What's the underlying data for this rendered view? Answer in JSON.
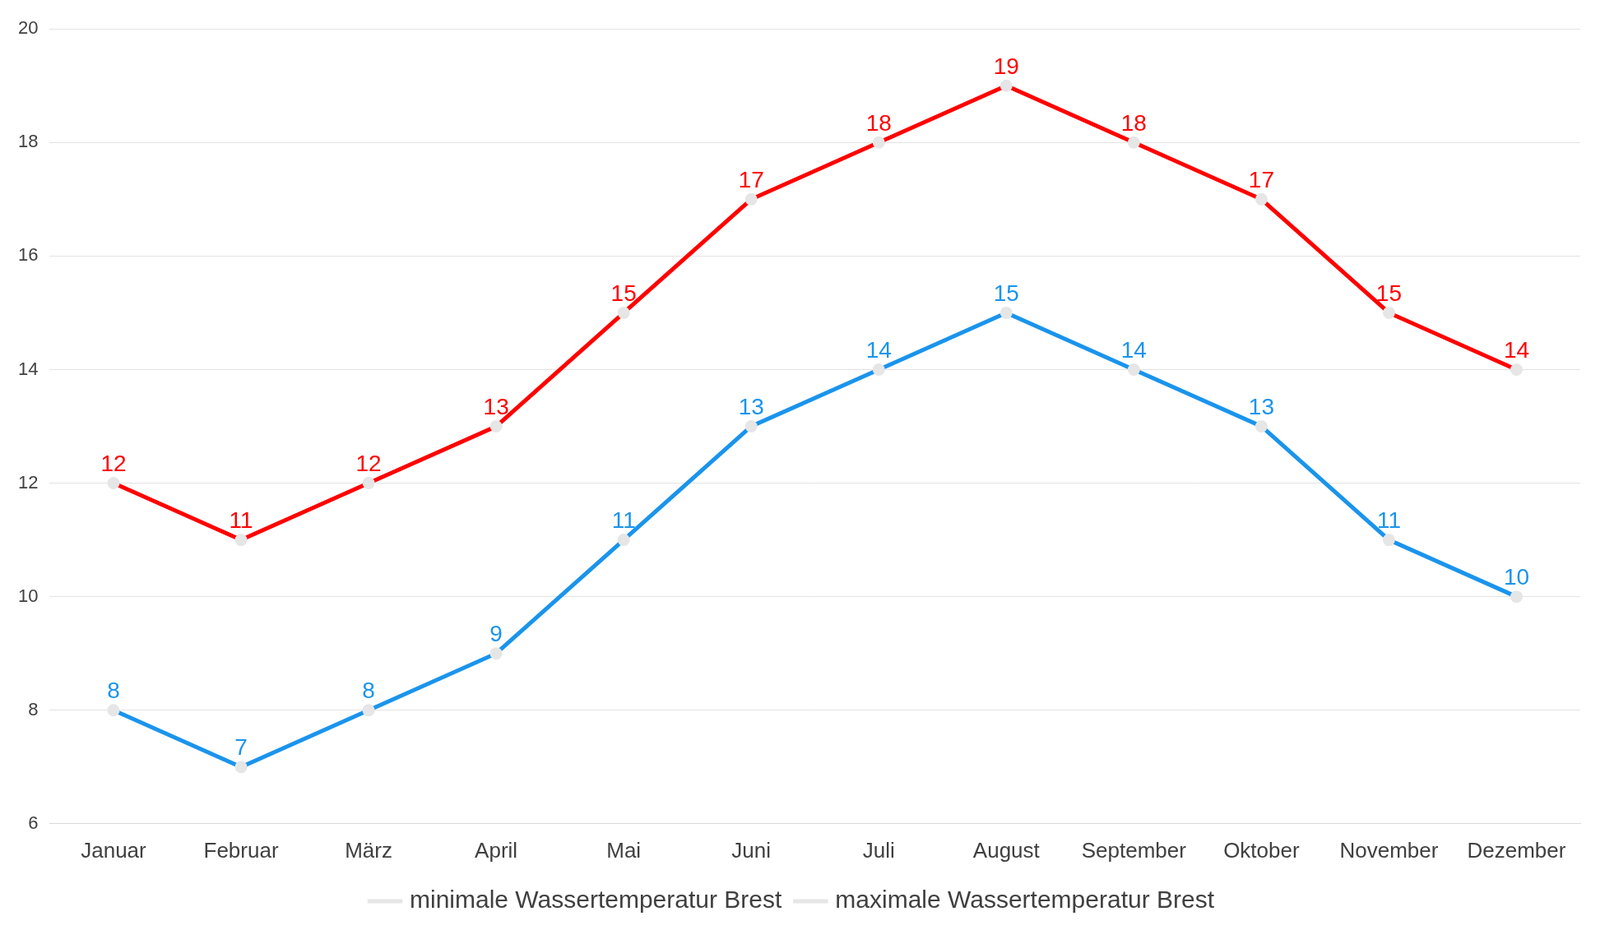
{
  "chart_data": {
    "type": "line",
    "categories": [
      "Januar",
      "Februar",
      "März",
      "April",
      "Mai",
      "Juni",
      "Juli",
      "August",
      "September",
      "Oktober",
      "November",
      "Dezember"
    ],
    "series": [
      {
        "name": "minimale Wassertemperatur Brest",
        "color": "#1a94ec",
        "values": [
          8,
          7,
          8,
          9,
          11,
          13,
          14,
          15,
          14,
          13,
          11,
          10
        ]
      },
      {
        "name": "maximale Wassertemperatur Brest",
        "color": "#ff0000",
        "values": [
          12,
          11,
          12,
          13,
          15,
          17,
          18,
          19,
          18,
          17,
          15,
          14
        ]
      }
    ],
    "ylim": [
      6,
      20
    ],
    "yticks": [
      6,
      8,
      10,
      12,
      14,
      16,
      18,
      20
    ],
    "grid": true,
    "legend": "bottom",
    "data_labels": true,
    "marker": "circle"
  }
}
